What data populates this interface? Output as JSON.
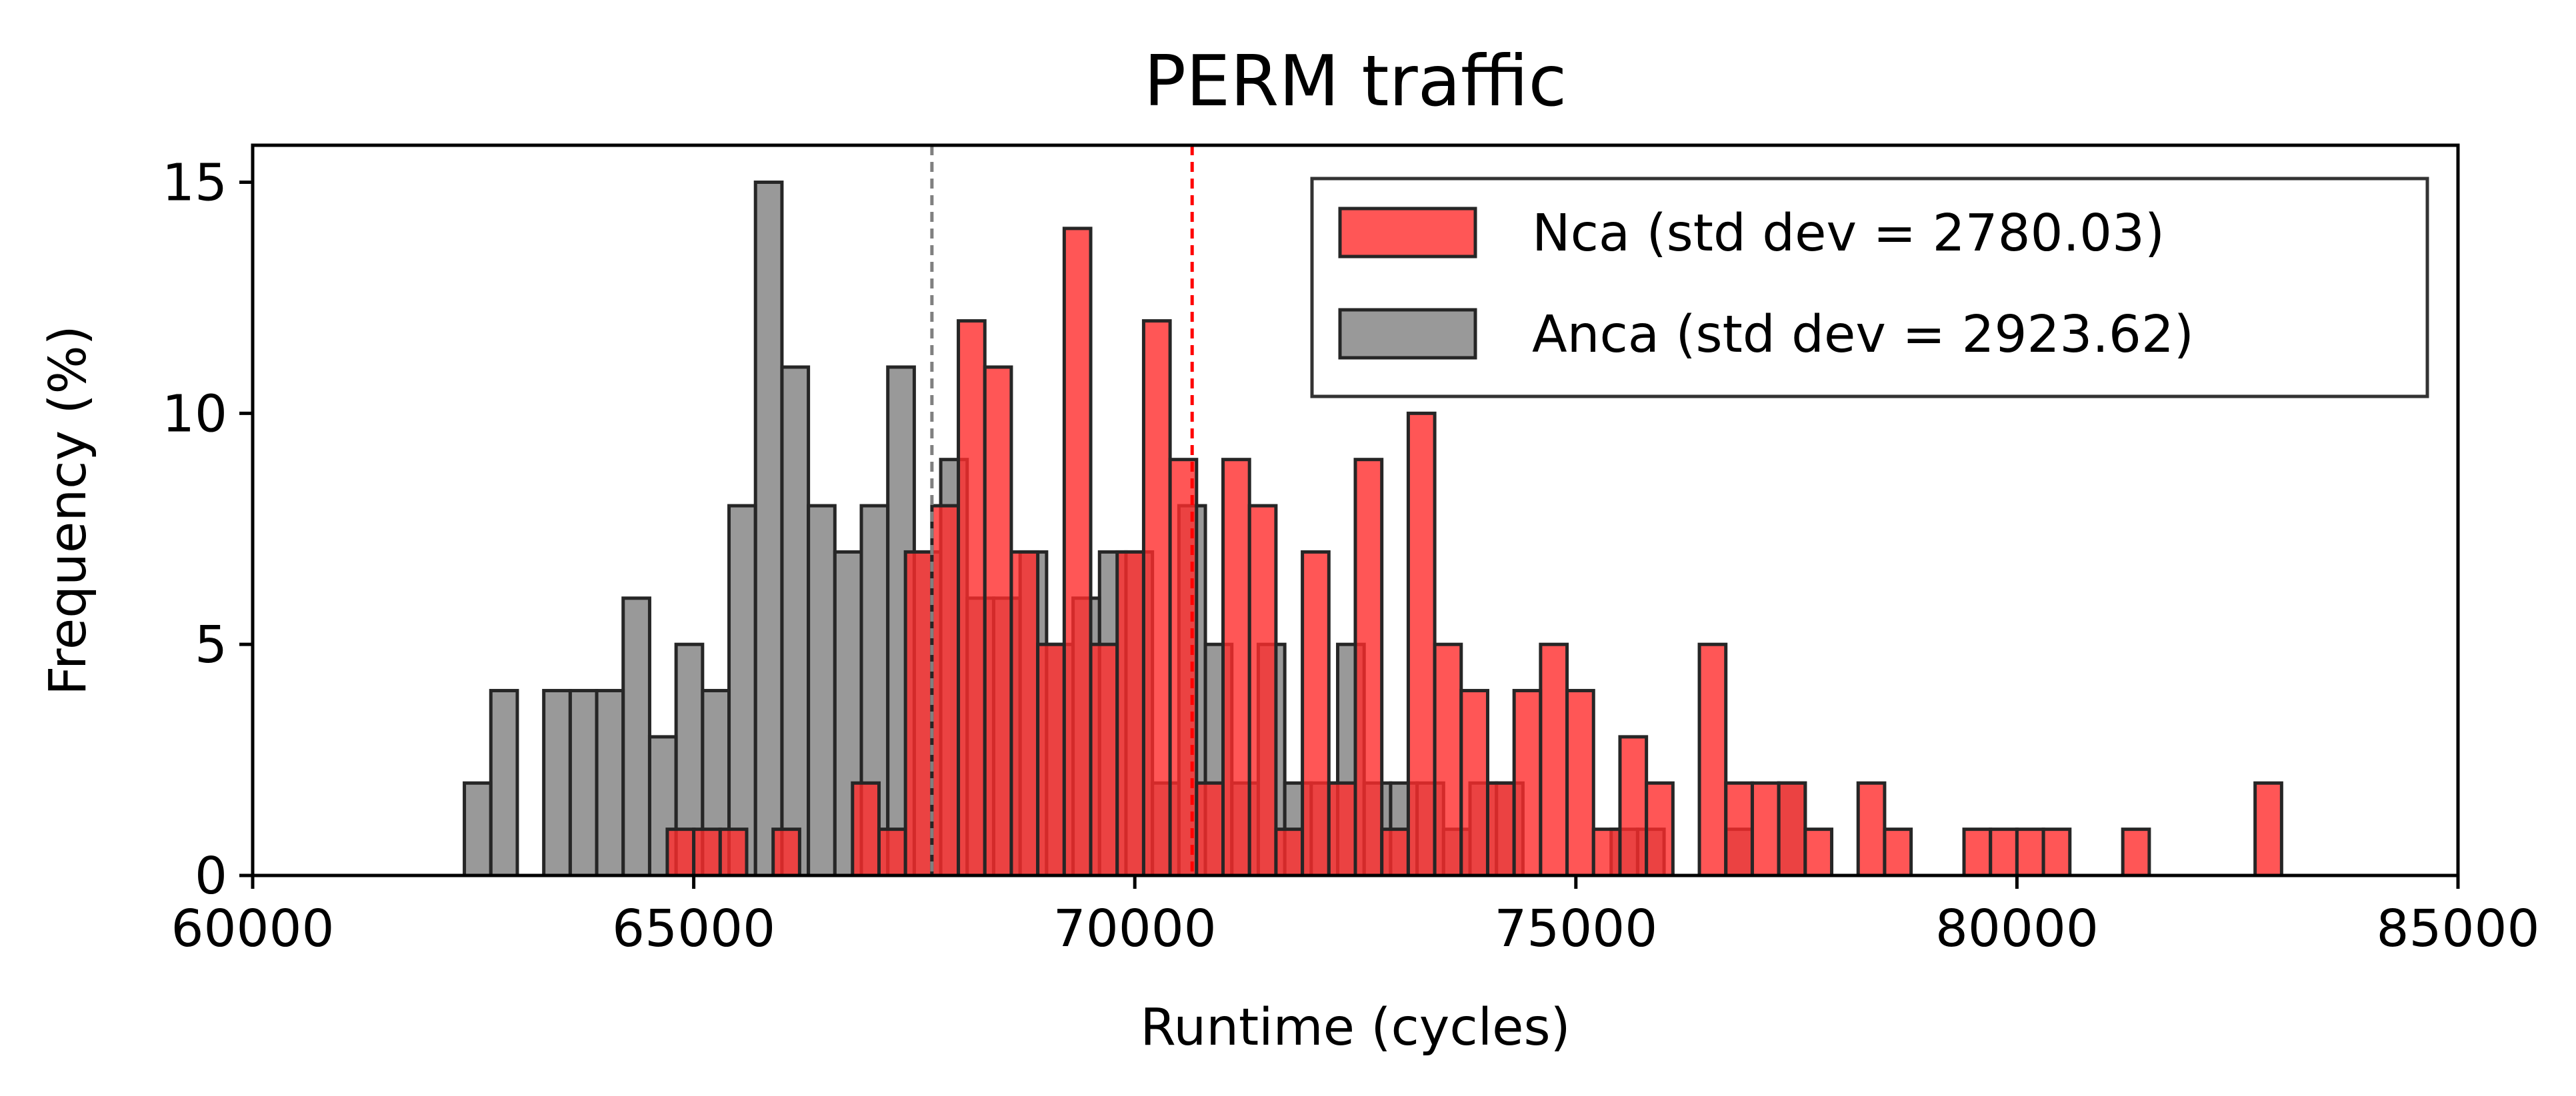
{
  "chart_data": {
    "type": "bar",
    "title": "PERM traffic",
    "xlabel": "Runtime (cycles)",
    "ylabel": "Frequency (%)",
    "xlim": [
      60000,
      85000
    ],
    "ylim": [
      0,
      15.8
    ],
    "xticks": [
      60000,
      65000,
      70000,
      75000,
      80000,
      85000
    ],
    "xtick_labels": [
      "60000",
      "65000",
      "70000",
      "75000",
      "80000",
      "85000"
    ],
    "yticks": [
      0,
      5,
      10,
      15
    ],
    "ytick_labels": [
      "0",
      "5",
      "10",
      "15"
    ],
    "bin_width": 300,
    "grid": false,
    "legend_position": "top-right",
    "series": [
      {
        "name": "Nca (std dev = 2780.03)",
        "color": "#ff2c2c",
        "mean": 70650,
        "mean_line_color": "#ff0000",
        "bins": [
          {
            "x": 64700,
            "y": 1
          },
          {
            "x": 65000,
            "y": 1
          },
          {
            "x": 65300,
            "y": 1
          },
          {
            "x": 65900,
            "y": 1
          },
          {
            "x": 66800,
            "y": 2
          },
          {
            "x": 67100,
            "y": 1
          },
          {
            "x": 67400,
            "y": 7
          },
          {
            "x": 67700,
            "y": 8
          },
          {
            "x": 68000,
            "y": 12
          },
          {
            "x": 68300,
            "y": 11
          },
          {
            "x": 68600,
            "y": 7
          },
          {
            "x": 68900,
            "y": 5
          },
          {
            "x": 69200,
            "y": 14
          },
          {
            "x": 69500,
            "y": 5
          },
          {
            "x": 69800,
            "y": 7
          },
          {
            "x": 70100,
            "y": 12
          },
          {
            "x": 70400,
            "y": 9
          },
          {
            "x": 70700,
            "y": 2
          },
          {
            "x": 71000,
            "y": 9
          },
          {
            "x": 71300,
            "y": 8
          },
          {
            "x": 71600,
            "y": 1
          },
          {
            "x": 71900,
            "y": 7
          },
          {
            "x": 72200,
            "y": 2
          },
          {
            "x": 72500,
            "y": 9
          },
          {
            "x": 72800,
            "y": 1
          },
          {
            "x": 73100,
            "y": 10
          },
          {
            "x": 73400,
            "y": 5
          },
          {
            "x": 73700,
            "y": 4
          },
          {
            "x": 74000,
            "y": 2
          },
          {
            "x": 74300,
            "y": 4
          },
          {
            "x": 74600,
            "y": 5
          },
          {
            "x": 74900,
            "y": 4
          },
          {
            "x": 75200,
            "y": 1
          },
          {
            "x": 75500,
            "y": 3
          },
          {
            "x": 75800,
            "y": 2
          },
          {
            "x": 76400,
            "y": 5
          },
          {
            "x": 76700,
            "y": 2
          },
          {
            "x": 77000,
            "y": 2
          },
          {
            "x": 77300,
            "y": 2
          },
          {
            "x": 77600,
            "y": 1
          },
          {
            "x": 78200,
            "y": 2
          },
          {
            "x": 78500,
            "y": 1
          },
          {
            "x": 79400,
            "y": 1
          },
          {
            "x": 79700,
            "y": 1
          },
          {
            "x": 80000,
            "y": 1
          },
          {
            "x": 80300,
            "y": 1
          },
          {
            "x": 81200,
            "y": 1
          },
          {
            "x": 82700,
            "y": 2
          }
        ]
      },
      {
        "name": "Anca (std dev = 2923.62)",
        "color": "#808080",
        "mean": 67700,
        "mean_line_color": "#808080",
        "bins": [
          {
            "x": 62400,
            "y": 2
          },
          {
            "x": 62700,
            "y": 4
          },
          {
            "x": 63300,
            "y": 4
          },
          {
            "x": 63600,
            "y": 4
          },
          {
            "x": 63900,
            "y": 4
          },
          {
            "x": 64200,
            "y": 6
          },
          {
            "x": 64500,
            "y": 3
          },
          {
            "x": 64800,
            "y": 5
          },
          {
            "x": 65100,
            "y": 4
          },
          {
            "x": 65400,
            "y": 8
          },
          {
            "x": 65700,
            "y": 15
          },
          {
            "x": 66000,
            "y": 11
          },
          {
            "x": 66300,
            "y": 8
          },
          {
            "x": 66600,
            "y": 7
          },
          {
            "x": 66900,
            "y": 8
          },
          {
            "x": 67200,
            "y": 11
          },
          {
            "x": 67500,
            "y": 7
          },
          {
            "x": 67800,
            "y": 9
          },
          {
            "x": 68100,
            "y": 6
          },
          {
            "x": 68400,
            "y": 6
          },
          {
            "x": 68700,
            "y": 7
          },
          {
            "x": 69000,
            "y": 5
          },
          {
            "x": 69300,
            "y": 6
          },
          {
            "x": 69600,
            "y": 7
          },
          {
            "x": 69900,
            "y": 7
          },
          {
            "x": 70200,
            "y": 2
          },
          {
            "x": 70500,
            "y": 8
          },
          {
            "x": 70800,
            "y": 5
          },
          {
            "x": 71100,
            "y": 2
          },
          {
            "x": 71400,
            "y": 5
          },
          {
            "x": 71700,
            "y": 2
          },
          {
            "x": 72000,
            "y": 2
          },
          {
            "x": 72300,
            "y": 5
          },
          {
            "x": 72600,
            "y": 2
          },
          {
            "x": 72900,
            "y": 2
          },
          {
            "x": 73200,
            "y": 2
          },
          {
            "x": 73500,
            "y": 1
          },
          {
            "x": 73800,
            "y": 2
          },
          {
            "x": 74100,
            "y": 2
          },
          {
            "x": 75400,
            "y": 1
          },
          {
            "x": 75700,
            "y": 1
          },
          {
            "x": 76700,
            "y": 1
          },
          {
            "x": 77300,
            "y": 2
          }
        ]
      }
    ]
  }
}
